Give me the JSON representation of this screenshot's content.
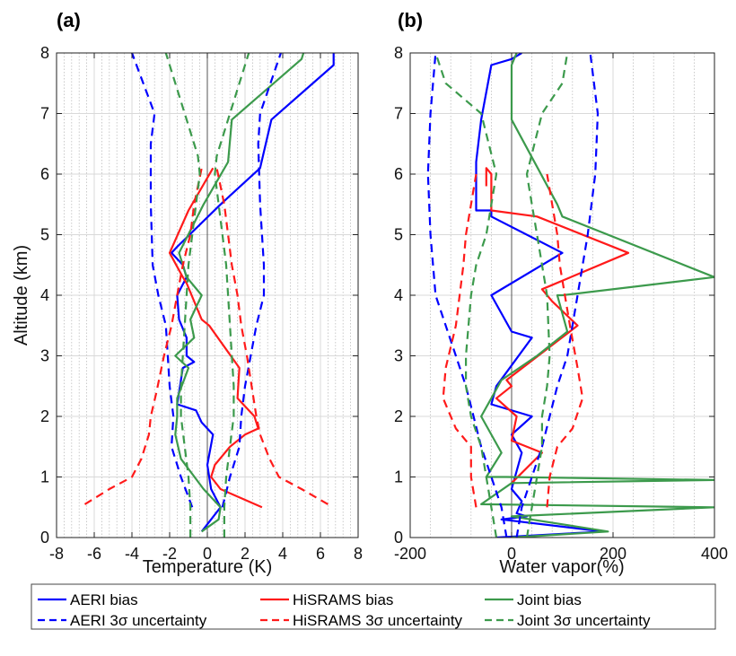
{
  "colors": {
    "aeri": "#0000ff",
    "hisrams": "#ff1a1a",
    "joint": "#3c9a4c"
  },
  "panels": [
    {
      "label": "(a)",
      "xlabel": "Temperature (K)",
      "ylabel": "Altitude (km)"
    },
    {
      "label": "(b)",
      "xlabel": "Water vapor(%)",
      "ylabel": ""
    }
  ],
  "legend": {
    "entries": [
      {
        "label": "AERI bias",
        "color": "aeri",
        "dash": false
      },
      {
        "label": "HiSRAMS bias",
        "color": "hisrams",
        "dash": false
      },
      {
        "label": "Joint bias",
        "color": "joint",
        "dash": false
      },
      {
        "label": "AERI 3σ uncertainty",
        "color": "aeri",
        "dash": true
      },
      {
        "label": "HiSRAMS 3σ uncertainty",
        "color": "hisrams",
        "dash": true
      },
      {
        "label": "Joint 3σ uncertainty",
        "color": "joint",
        "dash": true
      }
    ]
  },
  "chart_data": [
    {
      "type": "line",
      "title": "(a)",
      "xlabel": "Temperature (K)",
      "ylabel": "Altitude (km)",
      "xlim": [
        -8,
        8
      ],
      "ylim": [
        0,
        8
      ],
      "xticks": [
        "-8",
        "-6",
        "-4",
        "-2",
        "0",
        "2",
        "4",
        "6",
        "8"
      ],
      "yticks": [
        "0",
        "1",
        "2",
        "3",
        "4",
        "5",
        "6",
        "7",
        "8"
      ],
      "grid": true,
      "series": [
        {
          "name": "AERI bias",
          "color": "aeri",
          "dash": false,
          "x": [
            -0.3,
            0.7,
            0.2,
            0.0,
            0.3,
            -0.3,
            -0.6,
            -1.6,
            -1.3,
            -0.7,
            -1.1,
            -1.1,
            -1.5,
            -1.6,
            -1.1,
            -1.3,
            -1.9,
            -1.6,
            0.7,
            2.8,
            3.4,
            6.7,
            6.7
          ],
          "y": [
            0.1,
            0.5,
            0.8,
            1.2,
            1.7,
            1.9,
            2.1,
            2.2,
            2.8,
            2.9,
            3.0,
            3.3,
            3.6,
            4.0,
            4.3,
            4.5,
            4.7,
            4.8,
            5.5,
            6.1,
            6.9,
            7.8,
            8.0
          ]
        },
        {
          "name": "HiSRAMS bias",
          "color": "hisrams",
          "dash": false,
          "x": [
            2.9,
            0.7,
            0.2,
            0.4,
            1.2,
            2.0,
            2.7,
            2.5,
            1.6,
            1.7,
            0.1,
            -0.3,
            -1.1,
            -1.3,
            -2.0,
            -1.0,
            0.3
          ],
          "y": [
            0.5,
            0.8,
            1.0,
            1.2,
            1.5,
            1.7,
            1.8,
            2.0,
            2.3,
            2.8,
            3.5,
            3.6,
            4.2,
            4.3,
            4.7,
            5.4,
            6.1
          ]
        },
        {
          "name": "Joint bias",
          "color": "joint",
          "dash": false,
          "x": [
            -0.3,
            0.6,
            0.7,
            -0.2,
            -1.4,
            -1.7,
            -1.6,
            -1.6,
            -1.0,
            -1.7,
            -0.7,
            -0.9,
            -0.3,
            -1.1,
            -1.5,
            -0.2,
            1.1,
            1.3,
            5.0,
            5.1
          ],
          "y": [
            0.1,
            0.3,
            0.5,
            0.8,
            1.3,
            1.7,
            2.0,
            2.3,
            2.8,
            3.0,
            3.3,
            3.6,
            4.0,
            4.3,
            4.7,
            5.5,
            6.2,
            6.9,
            7.9,
            8.0
          ]
        },
        {
          "name": "AERI 3σ uncertainty",
          "color": "aeri",
          "dash": true,
          "x": [
            -0.8,
            -1.4,
            -1.9,
            -1.8,
            -2.0,
            -2.1,
            -2.2,
            -2.6,
            -2.9,
            -3.0,
            -3.0,
            -2.8,
            -4.0
          ],
          "y": [
            0.5,
            1.0,
            1.5,
            2.0,
            2.5,
            3.0,
            3.5,
            4.0,
            4.5,
            5.5,
            6.5,
            7.0,
            8.0
          ]
        },
        {
          "name": "AERI 3σ uncertainty",
          "color": "aeri",
          "dash": true,
          "x": [
            0.8,
            1.2,
            1.7,
            1.8,
            2.0,
            2.3,
            2.6,
            3.0,
            3.0,
            2.8,
            2.7,
            2.8,
            3.9
          ],
          "y": [
            0.5,
            1.0,
            1.5,
            2.0,
            2.5,
            3.0,
            3.5,
            4.0,
            4.5,
            5.5,
            6.5,
            7.0,
            8.0
          ]
        },
        {
          "name": "HiSRAMS 3σ uncertainty",
          "color": "hisrams",
          "dash": true,
          "x": [
            -6.5,
            -5.2,
            -4.0,
            -3.5,
            -3.1,
            -3.0,
            -2.7,
            -2.3,
            -1.9,
            -1.6,
            -1.3,
            -0.9,
            -0.7,
            -0.3
          ],
          "y": [
            0.55,
            0.8,
            1.0,
            1.3,
            1.7,
            2.0,
            2.4,
            3.0,
            3.5,
            4.0,
            4.5,
            5.0,
            5.5,
            6.1
          ]
        },
        {
          "name": "HiSRAMS 3σ uncertainty",
          "color": "hisrams",
          "dash": true,
          "x": [
            6.4,
            5.0,
            3.8,
            3.3,
            2.8,
            2.6,
            2.4,
            2.1,
            1.8,
            1.6,
            1.3,
            1.1,
            0.9,
            0.5
          ],
          "y": [
            0.55,
            0.8,
            1.0,
            1.3,
            1.7,
            2.0,
            2.4,
            3.0,
            3.5,
            4.0,
            4.5,
            5.0,
            5.5,
            6.1
          ]
        },
        {
          "name": "Joint 3σ uncertainty",
          "color": "joint",
          "dash": true,
          "x": [
            -0.9,
            -0.9,
            -1.0,
            -1.2,
            -1.4,
            -1.4,
            -1.3,
            -1.2,
            -1.1,
            -1.0,
            -0.8,
            -0.6,
            -0.4,
            -0.5,
            -1.2,
            -2.2
          ],
          "y": [
            0.0,
            0.5,
            1.0,
            1.5,
            2.0,
            2.5,
            3.0,
            3.5,
            4.0,
            4.5,
            5.0,
            5.5,
            6.0,
            6.3,
            7.0,
            8.0
          ]
        },
        {
          "name": "Joint 3σ uncertainty",
          "color": "joint",
          "dash": true,
          "x": [
            0.9,
            0.9,
            1.0,
            1.2,
            1.4,
            1.4,
            1.3,
            1.2,
            1.1,
            1.0,
            0.8,
            0.6,
            0.4,
            0.5,
            1.2,
            2.2
          ],
          "y": [
            0.0,
            0.5,
            1.0,
            1.5,
            2.0,
            2.5,
            3.0,
            3.5,
            4.0,
            4.5,
            5.0,
            5.5,
            6.0,
            6.3,
            7.0,
            8.0
          ]
        }
      ]
    },
    {
      "type": "line",
      "title": "(b)",
      "xlabel": "Water vapor(%)",
      "ylabel": "",
      "xlim": [
        -200,
        400
      ],
      "ylim": [
        0,
        8
      ],
      "xticks": [
        "-200",
        "0",
        "200",
        "400"
      ],
      "yticks": [
        "0",
        "1",
        "2",
        "3",
        "4",
        "5",
        "6",
        "7",
        "8"
      ],
      "grid": true,
      "series": [
        {
          "name": "AERI bias",
          "color": "aeri",
          "dash": false,
          "x": [
            -30,
            180,
            -20,
            30,
            10,
            20,
            0,
            20,
            0,
            40,
            -40,
            -30,
            40,
            0,
            -40,
            100,
            -40,
            -40,
            -70,
            -70,
            -60,
            -40,
            0,
            20
          ],
          "y": [
            0.0,
            0.1,
            0.3,
            0.35,
            0.4,
            0.6,
            0.8,
            1.4,
            1.7,
            2.0,
            2.2,
            2.5,
            3.3,
            3.4,
            4.0,
            4.7,
            5.3,
            5.4,
            5.4,
            6.2,
            6.9,
            7.8,
            7.9,
            8.0
          ]
        },
        {
          "name": "HiSRAMS bias",
          "color": "hisrams",
          "dash": false,
          "x": [
            0,
            60,
            0,
            10,
            -30,
            0,
            -10,
            130,
            80,
            60,
            230,
            50,
            -40,
            -40,
            -50,
            -50
          ],
          "y": [
            0.9,
            1.4,
            1.6,
            2.0,
            2.3,
            2.5,
            2.6,
            3.5,
            3.9,
            4.1,
            4.7,
            5.3,
            5.4,
            6.0,
            6.1,
            5.8
          ]
        },
        {
          "name": "Joint bias",
          "color": "joint",
          "dash": false,
          "x": [
            0,
            190,
            0,
            400,
            -60,
            0,
            400,
            -10,
            -50,
            -20,
            -60,
            -40,
            -20,
            50,
            110,
            90,
            100,
            400,
            100,
            90,
            0,
            0,
            10
          ],
          "y": [
            0.0,
            0.1,
            0.35,
            0.5,
            0.55,
            0.9,
            0.95,
            1.0,
            1.0,
            1.4,
            2.0,
            2.3,
            2.6,
            3.0,
            3.4,
            4.0,
            4.0,
            4.3,
            5.3,
            5.5,
            6.9,
            7.8,
            8.0
          ]
        },
        {
          "name": "AERI 3σ uncertainty",
          "color": "aeri",
          "dash": true,
          "x": [
            -10,
            -20,
            -40,
            -60,
            -75,
            -90,
            -110,
            -130,
            -150,
            -160,
            -165,
            -160,
            -150
          ],
          "y": [
            0.0,
            0.5,
            1.0,
            1.5,
            2.0,
            2.5,
            3.0,
            3.5,
            4.0,
            5.0,
            6.0,
            7.0,
            8.0
          ]
        },
        {
          "name": "AERI 3σ uncertainty",
          "color": "aeri",
          "dash": true,
          "x": [
            10,
            20,
            40,
            60,
            75,
            90,
            110,
            120,
            130,
            150,
            165,
            170,
            155
          ],
          "y": [
            0.0,
            0.5,
            1.0,
            1.5,
            2.0,
            2.5,
            3.0,
            3.5,
            4.0,
            5.0,
            6.0,
            7.0,
            8.0
          ]
        },
        {
          "name": "HiSRAMS 3σ uncertainty",
          "color": "hisrams",
          "dash": true,
          "x": [
            -70,
            -80,
            -80,
            -110,
            -135,
            -130,
            -110,
            -95,
            -90,
            -70
          ],
          "y": [
            0.5,
            1.0,
            1.5,
            1.8,
            2.3,
            2.8,
            3.5,
            4.5,
            5.0,
            6.0
          ]
        },
        {
          "name": "HiSRAMS 3σ uncertainty",
          "color": "hisrams",
          "dash": true,
          "x": [
            70,
            75,
            90,
            120,
            140,
            130,
            115,
            95,
            90,
            70
          ],
          "y": [
            0.5,
            1.0,
            1.5,
            1.8,
            2.3,
            2.8,
            3.5,
            4.5,
            5.0,
            6.0
          ]
        },
        {
          "name": "Joint 3σ uncertainty",
          "color": "joint",
          "dash": true,
          "x": [
            -30,
            -40,
            -50,
            -60,
            -80,
            -90,
            -90,
            -80,
            -70,
            -50,
            -40,
            -30,
            -60,
            -130,
            -150
          ],
          "y": [
            0.0,
            0.5,
            1.0,
            1.5,
            2.0,
            2.5,
            3.0,
            4.0,
            4.5,
            5.0,
            5.5,
            6.0,
            7.0,
            7.5,
            8.0
          ]
        },
        {
          "name": "Joint 3σ uncertainty",
          "color": "joint",
          "dash": true,
          "x": [
            30,
            40,
            50,
            60,
            60,
            70,
            75,
            70,
            60,
            50,
            40,
            30,
            60,
            100,
            110
          ],
          "y": [
            0.0,
            0.5,
            1.0,
            1.5,
            2.0,
            2.5,
            3.0,
            4.0,
            4.5,
            5.0,
            5.5,
            6.0,
            7.0,
            7.5,
            8.0
          ]
        }
      ]
    }
  ]
}
